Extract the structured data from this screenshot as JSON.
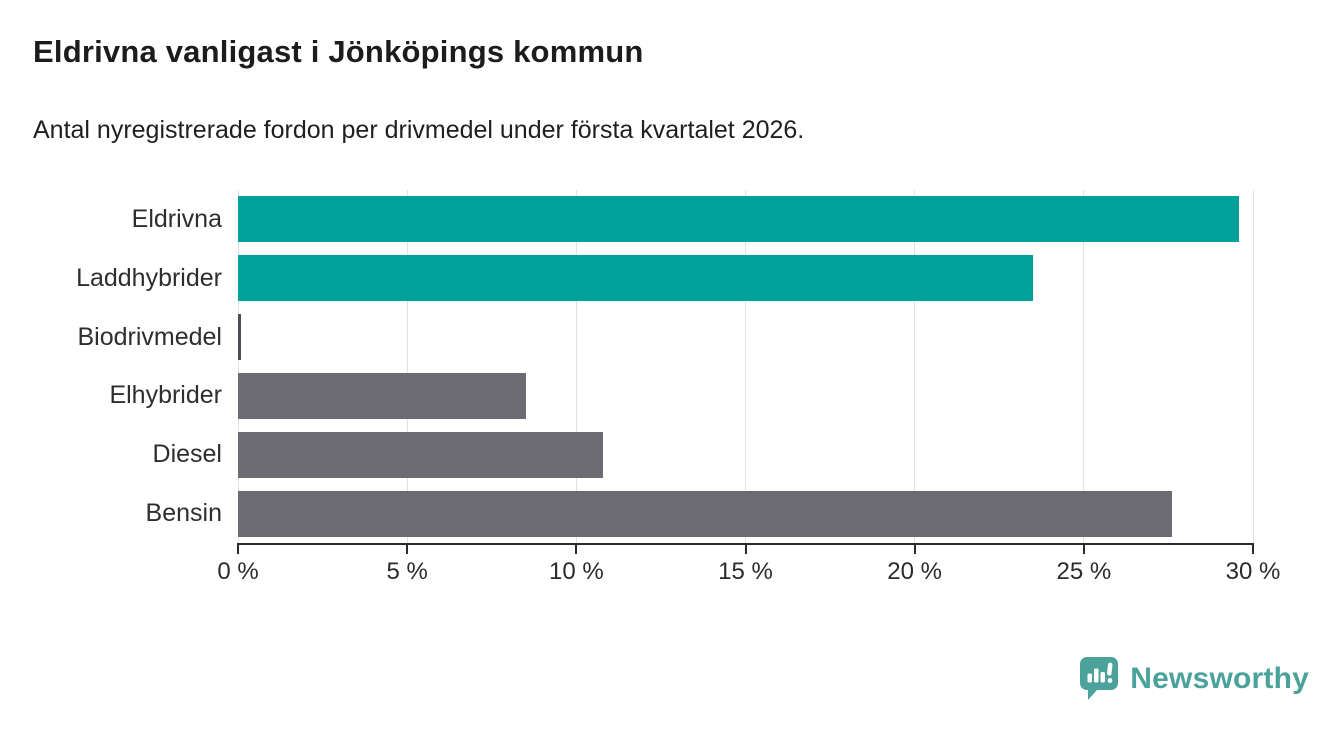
{
  "header": {
    "title": "Eldrivna vanligast i Jönköpings kommun",
    "subtitle": "Antal nyregistrerade fordon per drivmedel under första kvartalet 2026."
  },
  "chart_data": {
    "type": "bar",
    "orientation": "horizontal",
    "title": "Eldrivna vanligast i Jönköpings kommun",
    "subtitle": "Antal nyregistrerade fordon per drivmedel under första kvartalet 2026.",
    "categories": [
      "Eldrivna",
      "Laddhybrider",
      "Biodrivmedel",
      "Elhybrider",
      "Diesel",
      "Bensin"
    ],
    "values": [
      29.6,
      23.5,
      0.1,
      8.5,
      10.8,
      27.6
    ],
    "unit": "%",
    "bar_colors": [
      "#00a09b",
      "#00a09b",
      "#4d4c52",
      "#6c6b71",
      "#6c6b71",
      "#6c6b71"
    ],
    "xlabel": "",
    "ylabel": "",
    "xlim": [
      0,
      30
    ],
    "x_ticks": [
      0,
      5,
      10,
      15,
      20,
      25,
      30
    ],
    "x_tick_labels": [
      "0 %",
      "5 %",
      "10 %",
      "15 %",
      "20 %",
      "25 %",
      "30 %"
    ],
    "grid": true,
    "legend": false
  },
  "branding": {
    "wordmark": "Newsworthy",
    "logo_icon": "newsworthy-speech-bubble-chart-icon",
    "accent_color": "#4ba29a"
  },
  "colors": {
    "highlight_bar": "#00a09b",
    "default_bar": "#6c6b71",
    "tiny_bar": "#4d4c52",
    "axis": "#2b2b2b",
    "gridline": "#e1e1e1",
    "title_text": "#1c1c1c"
  }
}
